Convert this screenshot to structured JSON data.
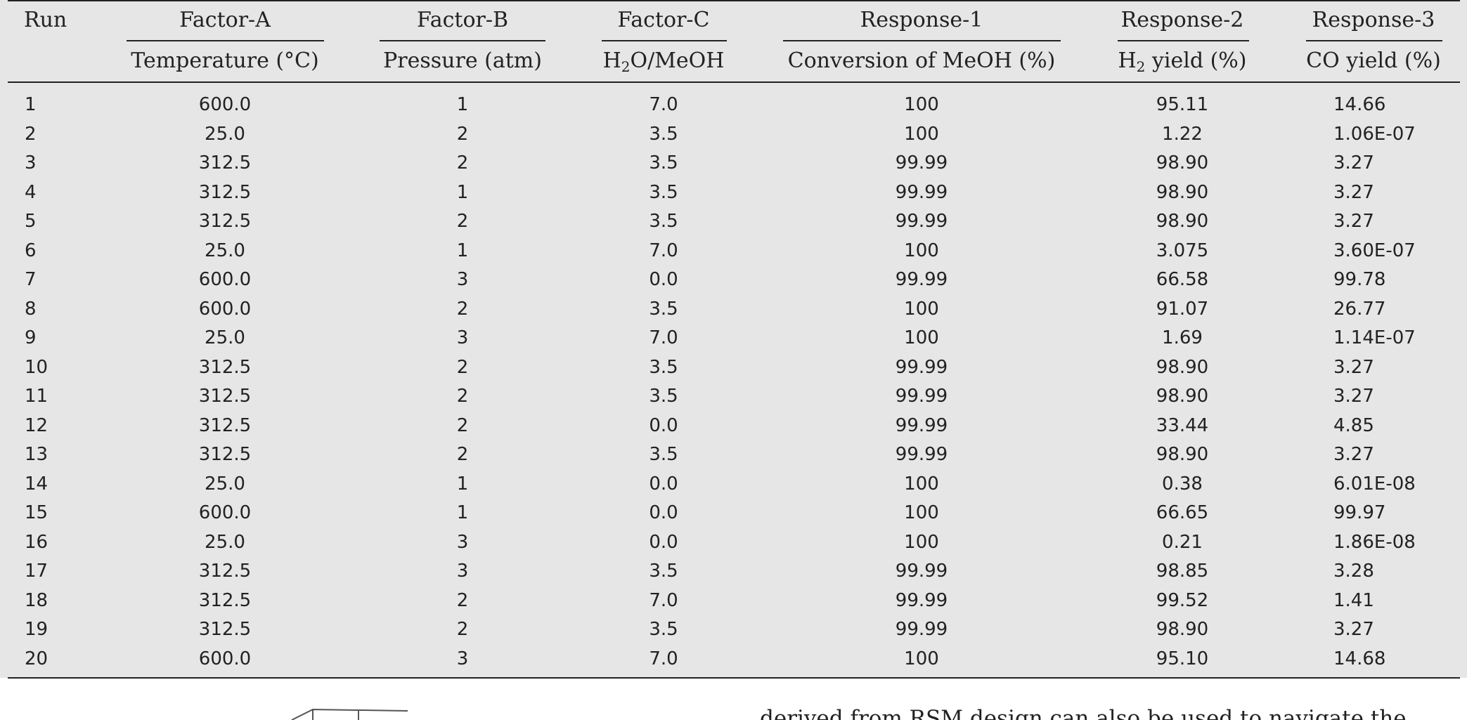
{
  "table": {
    "columns": [
      {
        "group": "Run",
        "label": null
      },
      {
        "group": "Factor-A",
        "label": "Temperature (°C)"
      },
      {
        "group": "Factor-B",
        "label": "Pressure (atm)"
      },
      {
        "group": "Factor-C",
        "label": {
          "base": "H",
          "sub": "2",
          "rest": "O/MeOH"
        }
      },
      {
        "group": "Response-1",
        "label": "Conversion of MeOH (%)"
      },
      {
        "group": "Response-2",
        "label": {
          "base": "H",
          "sub": "2",
          "rest": " yield (%)"
        }
      },
      {
        "group": "Response-3",
        "label": "CO yield (%)"
      }
    ],
    "rows": [
      [
        "1",
        "600.0",
        "1",
        "7.0",
        "100",
        "95.11",
        "14.66"
      ],
      [
        "2",
        "25.0",
        "2",
        "3.5",
        "100",
        "1.22",
        "1.06E-07"
      ],
      [
        "3",
        "312.5",
        "2",
        "3.5",
        "99.99",
        "98.90",
        "3.27"
      ],
      [
        "4",
        "312.5",
        "1",
        "3.5",
        "99.99",
        "98.90",
        "3.27"
      ],
      [
        "5",
        "312.5",
        "2",
        "3.5",
        "99.99",
        "98.90",
        "3.27"
      ],
      [
        "6",
        "25.0",
        "1",
        "7.0",
        "100",
        "3.075",
        "3.60E-07"
      ],
      [
        "7",
        "600.0",
        "3",
        "0.0",
        "99.99",
        "66.58",
        "99.78"
      ],
      [
        "8",
        "600.0",
        "2",
        "3.5",
        "100",
        "91.07",
        "26.77"
      ],
      [
        "9",
        "25.0",
        "3",
        "7.0",
        "100",
        "1.69",
        "1.14E-07"
      ],
      [
        "10",
        "312.5",
        "2",
        "3.5",
        "99.99",
        "98.90",
        "3.27"
      ],
      [
        "11",
        "312.5",
        "2",
        "3.5",
        "99.99",
        "98.90",
        "3.27"
      ],
      [
        "12",
        "312.5",
        "2",
        "0.0",
        "99.99",
        "33.44",
        "4.85"
      ],
      [
        "13",
        "312.5",
        "2",
        "3.5",
        "99.99",
        "98.90",
        "3.27"
      ],
      [
        "14",
        "25.0",
        "1",
        "0.0",
        "100",
        "0.38",
        "6.01E-08"
      ],
      [
        "15",
        "600.0",
        "1",
        "0.0",
        "100",
        "66.65",
        "99.97"
      ],
      [
        "16",
        "25.0",
        "3",
        "0.0",
        "100",
        "0.21",
        "1.86E-08"
      ],
      [
        "17",
        "312.5",
        "3",
        "3.5",
        "99.99",
        "98.85",
        "3.28"
      ],
      [
        "18",
        "312.5",
        "2",
        "7.0",
        "99.99",
        "99.52",
        "1.41"
      ],
      [
        "19",
        "312.5",
        "2",
        "3.5",
        "99.99",
        "98.90",
        "3.27"
      ],
      [
        "20",
        "600.0",
        "3",
        "7.0",
        "100",
        "95.10",
        "14.68"
      ]
    ]
  },
  "body_text": "derived from RSM design can also be used to navigate the"
}
